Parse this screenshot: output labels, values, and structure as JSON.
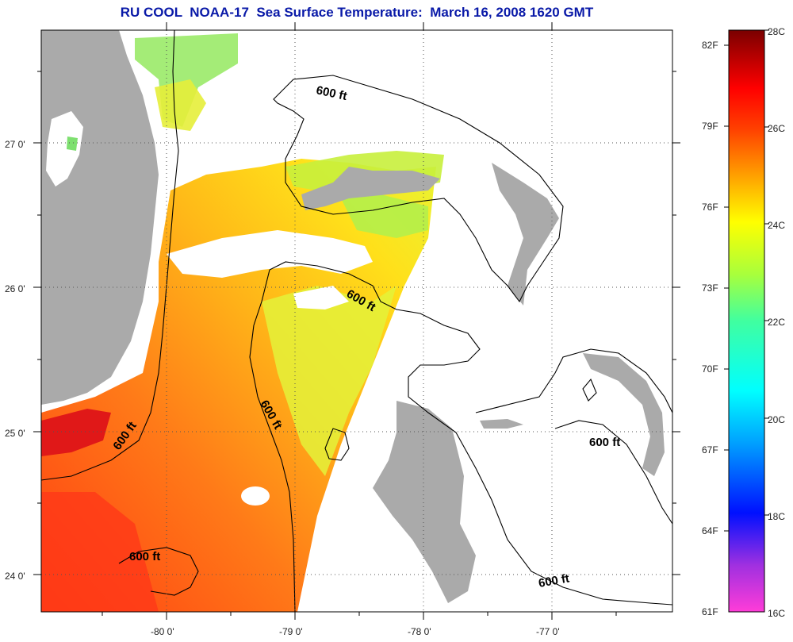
{
  "title": "RU COOL  NOAA-17  Sea Surface Temperature:  March 16, 2008 1620 GMT",
  "latitude_ticks": [
    "27 0'",
    "26 0'",
    "25 0'",
    "24 0'"
  ],
  "longitude_ticks": [
    "-80 0'",
    "-79 0'",
    "-78 0'",
    "-77 0'"
  ],
  "contour_label": "600 ft",
  "colorbar": {
    "fahrenheit_labels": [
      "82F",
      "79F",
      "76F",
      "73F",
      "70F",
      "67F",
      "64F",
      "61F"
    ],
    "celsius_labels": [
      "28C",
      "26C",
      "24C",
      "22C",
      "20C",
      "18C",
      "16C"
    ],
    "range_c": [
      16,
      28
    ]
  },
  "colors": {
    "title": "#0a1aa8",
    "land": "#aaaaaa",
    "cloud": "#ffffff",
    "warm": "#ff5a14",
    "mid": "#ffd200",
    "cool": "#b8f03a"
  }
}
